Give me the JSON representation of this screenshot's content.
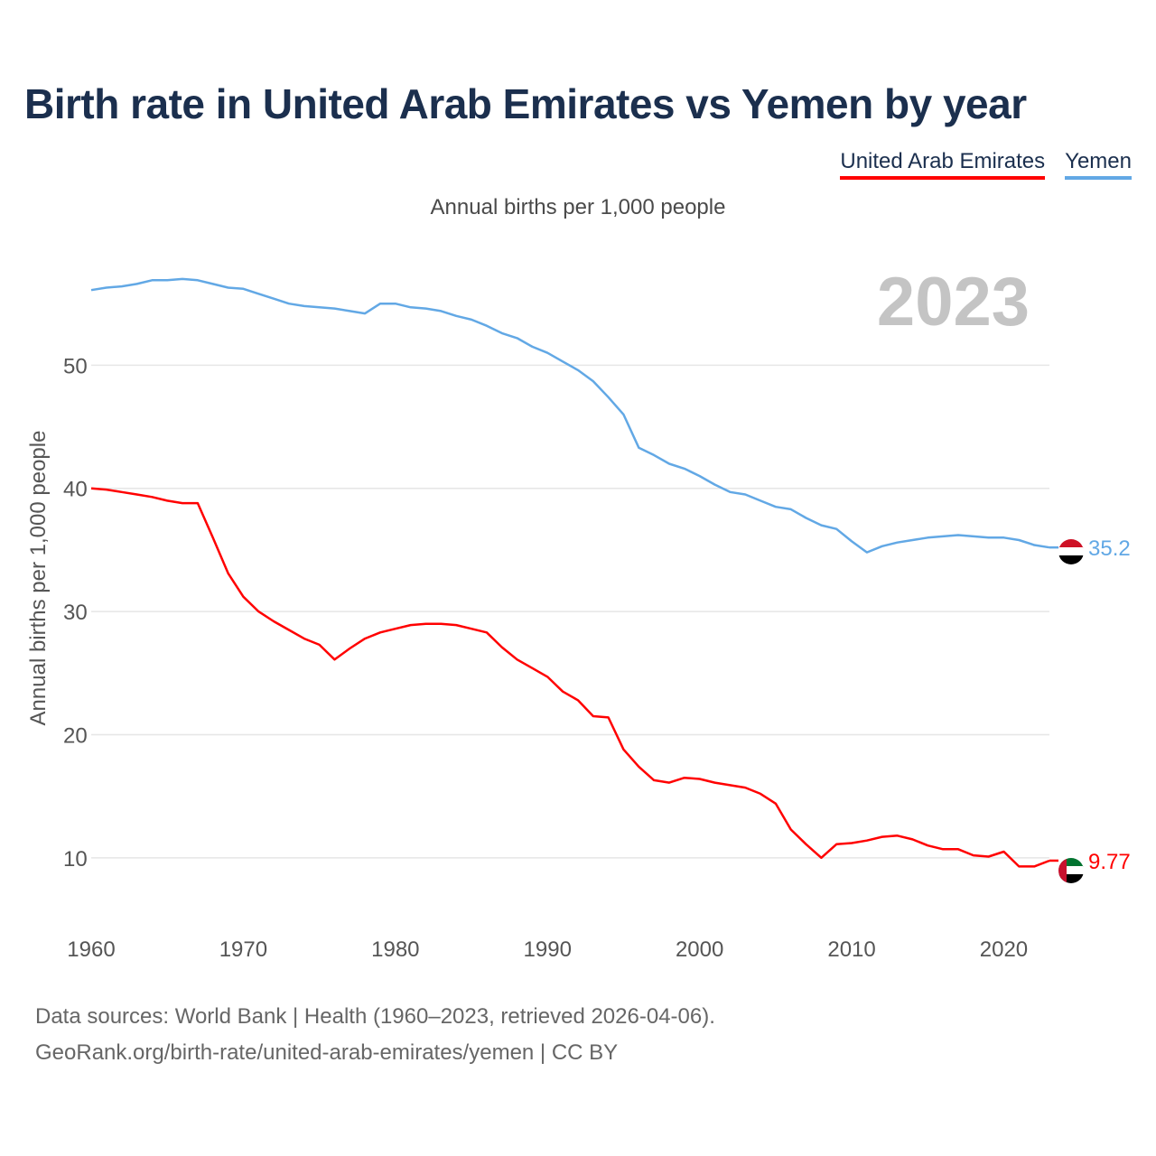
{
  "title": "Birth rate in United Arab Emirates vs Yemen by year",
  "subtitle": "Annual births per 1,000 people",
  "legend": [
    {
      "label": "United Arab Emirates",
      "color": "#ff0000"
    },
    {
      "label": "Yemen",
      "color": "#62a8e5"
    }
  ],
  "year_label": "2023",
  "footer": {
    "line1": "Data sources: World Bank | Health (1960–2023, retrieved 2026-04-06).",
    "line2": "GeoRank.org/birth-rate/united-arab-emirates/yemen | CC BY"
  },
  "chart_data": {
    "type": "line",
    "title": "Birth rate in United Arab Emirates vs Yemen by year",
    "xlabel": "",
    "ylabel": "Annual births per 1,000 people",
    "xlim": [
      1960,
      2023
    ],
    "ylim": [
      5,
      60
    ],
    "x_ticks": [
      1960,
      1970,
      1980,
      1990,
      2000,
      2010,
      2020
    ],
    "y_ticks": [
      10,
      20,
      30,
      40,
      50
    ],
    "grid": true,
    "x": [
      1960,
      1961,
      1962,
      1963,
      1964,
      1965,
      1966,
      1967,
      1968,
      1969,
      1970,
      1971,
      1972,
      1973,
      1974,
      1975,
      1976,
      1977,
      1978,
      1979,
      1980,
      1981,
      1982,
      1983,
      1984,
      1985,
      1986,
      1987,
      1988,
      1989,
      1990,
      1991,
      1992,
      1993,
      1994,
      1995,
      1996,
      1997,
      1998,
      1999,
      2000,
      2001,
      2002,
      2003,
      2004,
      2005,
      2006,
      2007,
      2008,
      2009,
      2010,
      2011,
      2012,
      2013,
      2014,
      2015,
      2016,
      2017,
      2018,
      2019,
      2020,
      2021,
      2022,
      2023
    ],
    "series": [
      {
        "name": "United Arab Emirates",
        "color": "#ff0000",
        "end_label": "9.77",
        "values": [
          40.0,
          39.9,
          39.7,
          39.5,
          39.3,
          39.0,
          38.8,
          38.8,
          36.0,
          33.1,
          31.2,
          30.0,
          29.2,
          28.5,
          27.8,
          27.3,
          26.1,
          27.0,
          27.8,
          28.3,
          28.6,
          28.9,
          29.0,
          29.0,
          28.9,
          28.6,
          28.3,
          27.1,
          26.1,
          25.4,
          24.7,
          23.5,
          22.8,
          21.5,
          21.4,
          18.8,
          17.4,
          16.3,
          16.1,
          16.5,
          16.4,
          16.1,
          15.9,
          15.7,
          15.2,
          14.4,
          12.3,
          11.1,
          10.0,
          11.1,
          11.2,
          11.4,
          11.7,
          11.8,
          11.5,
          11.0,
          10.7,
          10.7,
          10.2,
          10.1,
          10.5,
          9.3,
          9.3,
          9.77
        ]
      },
      {
        "name": "Yemen",
        "color": "#62a8e5",
        "end_label": "35.2",
        "values": [
          56.1,
          56.3,
          56.4,
          56.6,
          56.9,
          56.9,
          57.0,
          56.9,
          56.6,
          56.3,
          56.2,
          55.8,
          55.4,
          55.0,
          54.8,
          54.7,
          54.6,
          54.4,
          54.2,
          55.0,
          55.0,
          54.7,
          54.6,
          54.4,
          54.0,
          53.7,
          53.2,
          52.6,
          52.2,
          51.5,
          51.0,
          50.3,
          49.6,
          48.7,
          47.4,
          46.0,
          43.3,
          42.7,
          42.0,
          41.6,
          41.0,
          40.3,
          39.7,
          39.5,
          39.0,
          38.5,
          38.3,
          37.6,
          37.0,
          36.7,
          35.7,
          34.8,
          35.3,
          35.6,
          35.8,
          36.0,
          36.1,
          36.2,
          36.1,
          36.0,
          36.0,
          35.8,
          35.4,
          35.2
        ]
      }
    ]
  }
}
